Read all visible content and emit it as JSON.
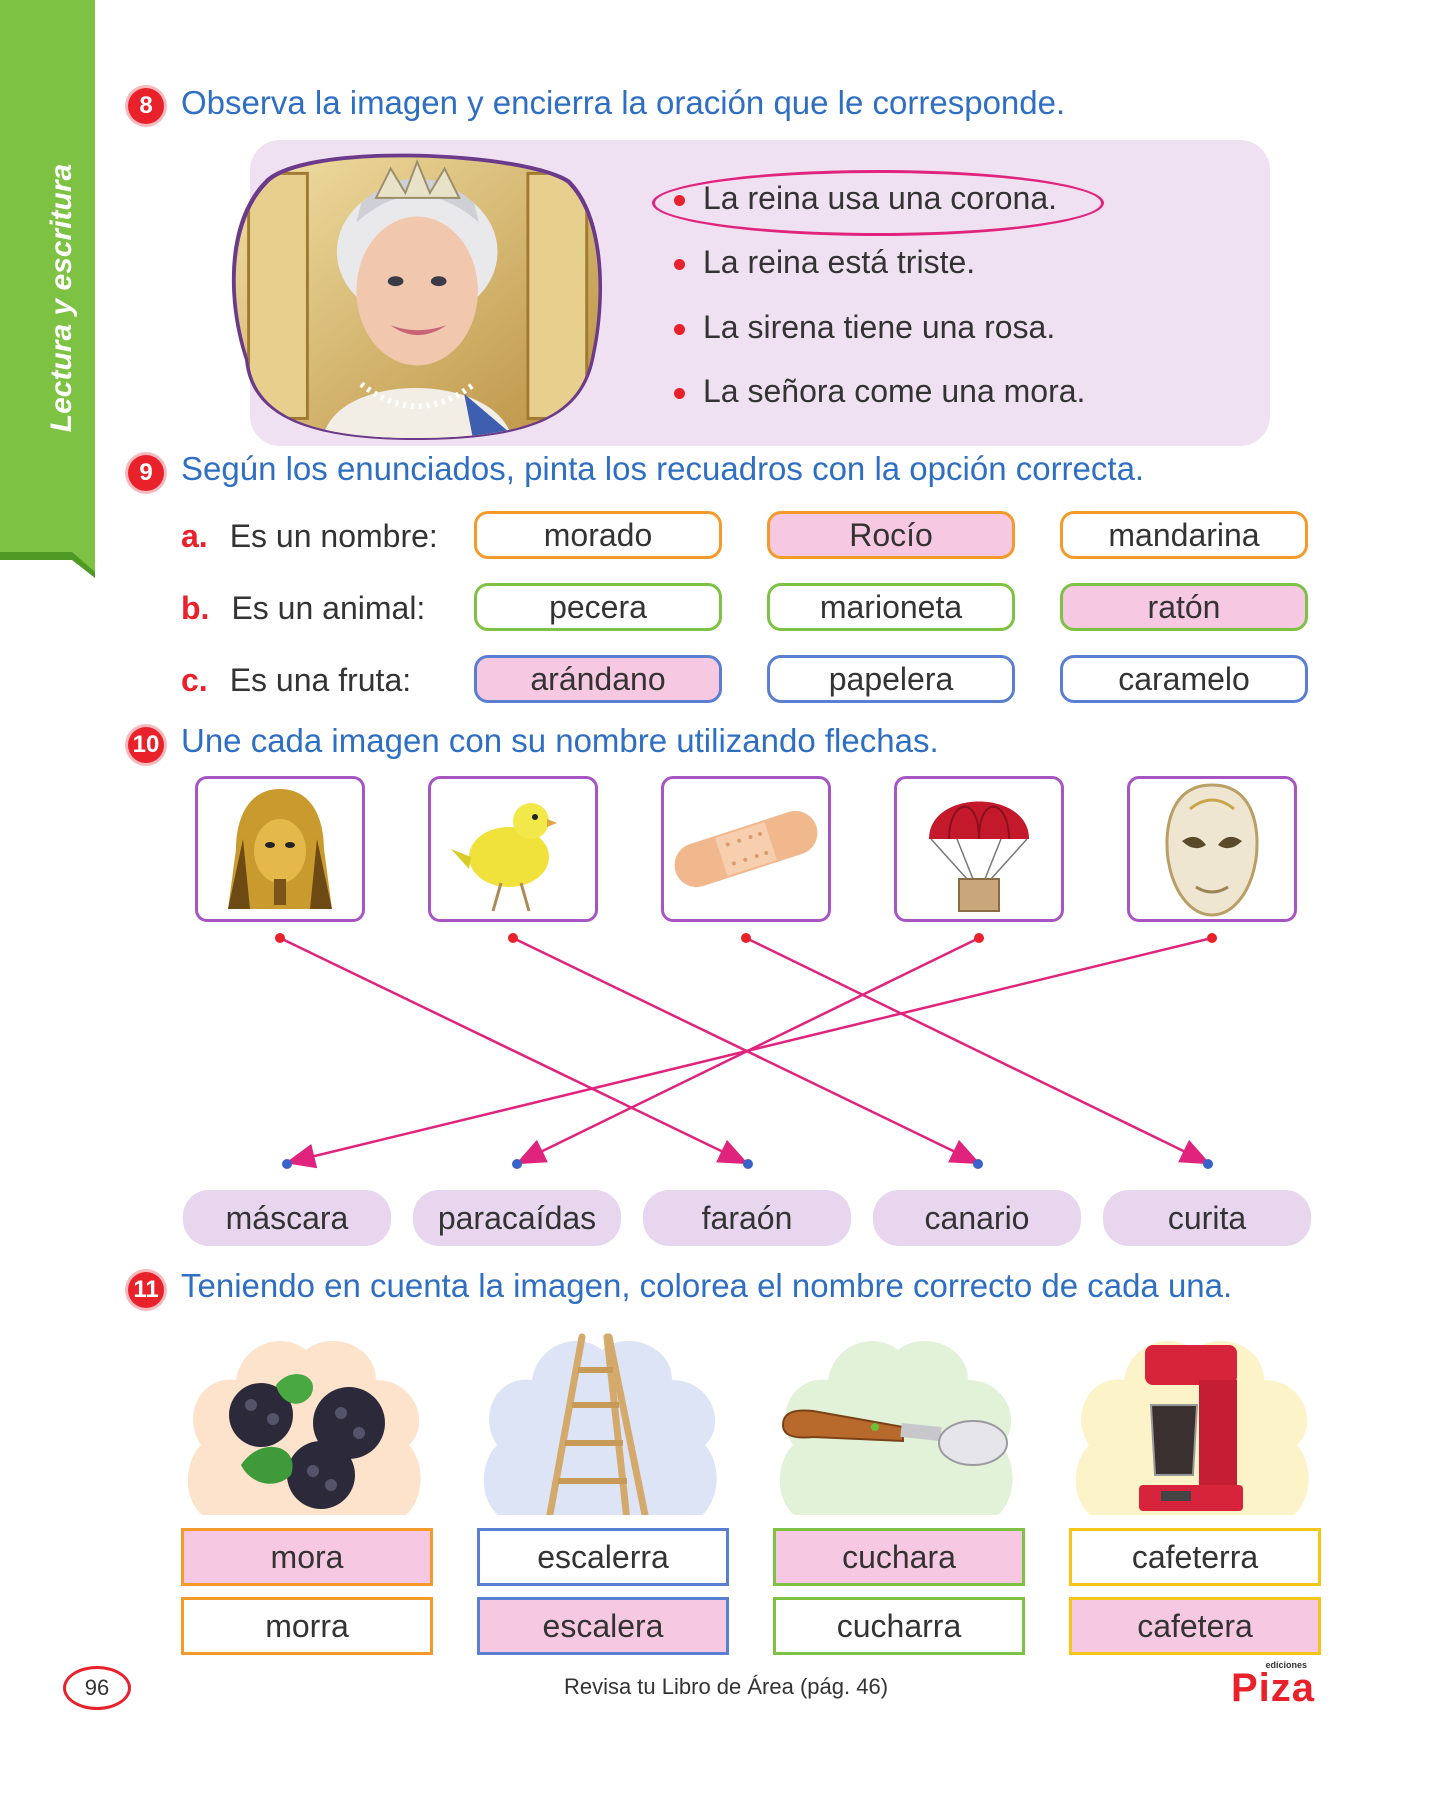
{
  "side_tab": {
    "label": "Lectura y escritura",
    "color": "#7dc242"
  },
  "q8": {
    "number": "8",
    "instruction": "Observa la imagen y encierra la oración que le corresponde.",
    "image_icon": "queen-portrait-icon",
    "options": [
      "La reina usa una corona.",
      "La reina está triste.",
      "La sirena tiene una rosa.",
      "La señora come una mora."
    ],
    "circled_option": "La reina usa una corona."
  },
  "q9": {
    "number": "9",
    "instruction": "Según los enunciados, pinta los recuadros con la opción correcta.",
    "rows": [
      {
        "letter": "a.",
        "label": "Es un nombre:",
        "color": "#f39a2b",
        "options": [
          "morado",
          "Rocío",
          "mandarina"
        ],
        "selected": "Rocío"
      },
      {
        "letter": "b.",
        "label": "Es un animal:",
        "color": "#7dc242",
        "options": [
          "pecera",
          "marioneta",
          "ratón"
        ],
        "selected": "ratón"
      },
      {
        "letter": "c.",
        "label": "Es una fruta:",
        "color": "#5b7fd0",
        "options": [
          "arándano",
          "papelera",
          "caramelo"
        ],
        "selected": "arándano"
      }
    ]
  },
  "q10": {
    "number": "10",
    "instruction": "Une cada imagen con su nombre utilizando flechas.",
    "images": [
      "pharaoh-mask-icon",
      "canary-icon",
      "bandage-icon",
      "parachute-icon",
      "carnival-mask-icon"
    ],
    "names": [
      "máscara",
      "paracaídas",
      "faraón",
      "canario",
      "curita"
    ],
    "connections": [
      {
        "image": "pharaoh-mask-icon",
        "name": "faraón"
      },
      {
        "image": "canary-icon",
        "name": "canario"
      },
      {
        "image": "bandage-icon",
        "name": "curita"
      },
      {
        "image": "parachute-icon",
        "name": "paracaídas"
      },
      {
        "image": "carnival-mask-icon",
        "name": "máscara"
      }
    ]
  },
  "q11": {
    "number": "11",
    "instruction": "Teniendo en cuenta la imagen, colorea el nombre correcto de cada una.",
    "items": [
      {
        "icon": "blackberries-icon",
        "cloud_color": "#fde3cc",
        "border": "#f39a2b",
        "options": [
          "mora",
          "morra"
        ],
        "selected": "mora"
      },
      {
        "icon": "ladder-icon",
        "cloud_color": "#dde4f6",
        "border": "#5b7fd0",
        "options": [
          "escalerra",
          "escalera"
        ],
        "selected": "escalera"
      },
      {
        "icon": "spoon-icon",
        "cloud_color": "#e2f2d8",
        "border": "#7dc242",
        "options": [
          "cuchara",
          "cucharra"
        ],
        "selected": "cuchara"
      },
      {
        "icon": "coffee-maker-icon",
        "cloud_color": "#fdf3c8",
        "border": "#f5c518",
        "options": [
          "cafeterra",
          "cafetera"
        ],
        "selected": "cafetera"
      }
    ]
  },
  "footer": {
    "page_number": "96",
    "text": "Revisa tu Libro de Área (pág. 46)",
    "brand_small": "ediciones",
    "brand": "Piza"
  }
}
